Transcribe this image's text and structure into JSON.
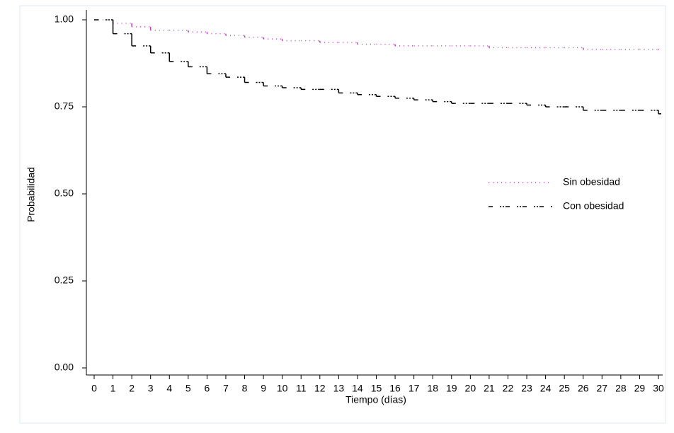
{
  "chart_data": {
    "type": "step",
    "x_label": "Tiempo (días)",
    "y_label": "Probabilidad",
    "x": [
      0,
      1,
      2,
      3,
      4,
      5,
      6,
      7,
      8,
      9,
      10,
      11,
      12,
      13,
      14,
      15,
      16,
      17,
      18,
      19,
      20,
      21,
      22,
      23,
      24,
      25,
      26,
      27,
      28,
      29,
      30
    ],
    "series": [
      {
        "name": "Sin obesidad",
        "color": "#c040c0",
        "dash": "1 5",
        "values": [
          1.0,
          0.99,
          0.98,
          0.97,
          0.97,
          0.965,
          0.96,
          0.955,
          0.95,
          0.945,
          0.94,
          0.94,
          0.935,
          0.935,
          0.93,
          0.93,
          0.925,
          0.925,
          0.925,
          0.925,
          0.925,
          0.92,
          0.92,
          0.92,
          0.92,
          0.92,
          0.915,
          0.915,
          0.915,
          0.915,
          0.915
        ]
      },
      {
        "name": "Con obesidad",
        "color": "#000000",
        "dash": "6 10 2 2 2 2",
        "values": [
          1.0,
          0.96,
          0.925,
          0.905,
          0.88,
          0.865,
          0.845,
          0.835,
          0.82,
          0.81,
          0.805,
          0.8,
          0.8,
          0.79,
          0.785,
          0.78,
          0.775,
          0.77,
          0.765,
          0.76,
          0.76,
          0.76,
          0.76,
          0.755,
          0.75,
          0.75,
          0.74,
          0.74,
          0.74,
          0.74,
          0.73
        ]
      }
    ],
    "xlim": [
      0,
      30
    ],
    "xticks": [
      0,
      1,
      2,
      3,
      4,
      5,
      6,
      7,
      8,
      9,
      10,
      11,
      12,
      13,
      14,
      15,
      16,
      17,
      18,
      19,
      20,
      21,
      22,
      23,
      24,
      25,
      26,
      27,
      28,
      29,
      30
    ],
    "ylim": [
      0,
      1
    ],
    "yticks": [
      {
        "value": 0,
        "label": "0.00"
      },
      {
        "value": 0.25,
        "label": "0.25"
      },
      {
        "value": 0.5,
        "label": "0.50"
      },
      {
        "value": 0.75,
        "label": "0.75"
      },
      {
        "value": 1,
        "label": "1.00"
      }
    ],
    "legend": "right"
  }
}
